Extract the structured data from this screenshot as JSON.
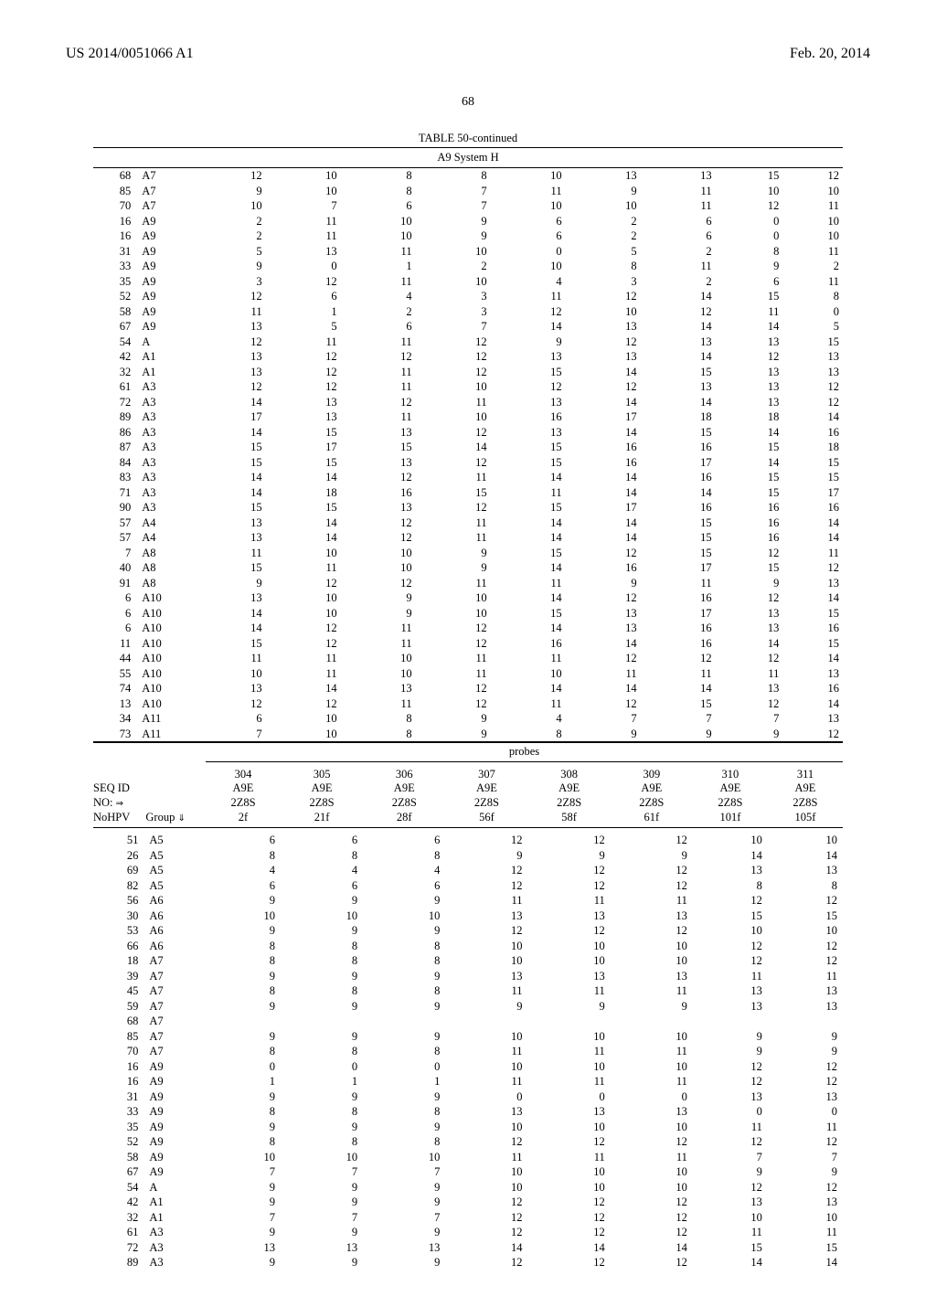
{
  "header": {
    "left": "US 2014/0051066 A1",
    "right": "Feb. 20, 2014"
  },
  "page_number": "68",
  "table_caption": "TABLE 50-continued",
  "system_label": "A9 System H",
  "probes_label": "probes",
  "top_table": {
    "col_count": 11,
    "rows": [
      [
        "68",
        "A7",
        "12",
        "10",
        "8",
        "8",
        "10",
        "13",
        "13",
        "15",
        "12"
      ],
      [
        "85",
        "A7",
        "9",
        "10",
        "8",
        "7",
        "11",
        "9",
        "11",
        "10",
        "10"
      ],
      [
        "70",
        "A7",
        "10",
        "7",
        "6",
        "7",
        "10",
        "10",
        "11",
        "12",
        "11"
      ],
      [
        "16",
        "A9",
        "2",
        "11",
        "10",
        "9",
        "6",
        "2",
        "6",
        "0",
        "10"
      ],
      [
        "16",
        "A9",
        "2",
        "11",
        "10",
        "9",
        "6",
        "2",
        "6",
        "0",
        "10"
      ],
      [
        "31",
        "A9",
        "5",
        "13",
        "11",
        "10",
        "0",
        "5",
        "2",
        "8",
        "11"
      ],
      [
        "33",
        "A9",
        "9",
        "0",
        "1",
        "2",
        "10",
        "8",
        "11",
        "9",
        "2"
      ],
      [
        "35",
        "A9",
        "3",
        "12",
        "11",
        "10",
        "4",
        "3",
        "2",
        "6",
        "11"
      ],
      [
        "52",
        "A9",
        "12",
        "6",
        "4",
        "3",
        "11",
        "12",
        "14",
        "15",
        "8"
      ],
      [
        "58",
        "A9",
        "11",
        "1",
        "2",
        "3",
        "12",
        "10",
        "12",
        "11",
        "0"
      ],
      [
        "67",
        "A9",
        "13",
        "5",
        "6",
        "7",
        "14",
        "13",
        "14",
        "14",
        "5"
      ],
      [
        "54",
        "A",
        "12",
        "11",
        "11",
        "12",
        "9",
        "12",
        "13",
        "13",
        "15"
      ],
      [
        "42",
        "A1",
        "13",
        "12",
        "12",
        "12",
        "13",
        "13",
        "14",
        "12",
        "13"
      ],
      [
        "32",
        "A1",
        "13",
        "12",
        "11",
        "12",
        "15",
        "14",
        "15",
        "13",
        "13"
      ],
      [
        "61",
        "A3",
        "12",
        "12",
        "11",
        "10",
        "12",
        "12",
        "13",
        "13",
        "12"
      ],
      [
        "72",
        "A3",
        "14",
        "13",
        "12",
        "11",
        "13",
        "14",
        "14",
        "13",
        "12"
      ],
      [
        "89",
        "A3",
        "17",
        "13",
        "11",
        "10",
        "16",
        "17",
        "18",
        "18",
        "14"
      ],
      [
        "86",
        "A3",
        "14",
        "15",
        "13",
        "12",
        "13",
        "14",
        "15",
        "14",
        "16"
      ],
      [
        "87",
        "A3",
        "15",
        "17",
        "15",
        "14",
        "15",
        "16",
        "16",
        "15",
        "18"
      ],
      [
        "84",
        "A3",
        "15",
        "15",
        "13",
        "12",
        "15",
        "16",
        "17",
        "14",
        "15"
      ],
      [
        "83",
        "A3",
        "14",
        "14",
        "12",
        "11",
        "14",
        "14",
        "16",
        "15",
        "15"
      ],
      [
        "71",
        "A3",
        "14",
        "18",
        "16",
        "15",
        "11",
        "14",
        "14",
        "15",
        "17"
      ],
      [
        "90",
        "A3",
        "15",
        "15",
        "13",
        "12",
        "15",
        "17",
        "16",
        "16",
        "16"
      ],
      [
        "57",
        "A4",
        "13",
        "14",
        "12",
        "11",
        "14",
        "14",
        "15",
        "16",
        "14"
      ],
      [
        "57",
        "A4",
        "13",
        "14",
        "12",
        "11",
        "14",
        "14",
        "15",
        "16",
        "14"
      ],
      [
        "7",
        "A8",
        "11",
        "10",
        "10",
        "9",
        "15",
        "12",
        "15",
        "12",
        "11"
      ],
      [
        "40",
        "A8",
        "15",
        "11",
        "10",
        "9",
        "14",
        "16",
        "17",
        "15",
        "12"
      ],
      [
        "91",
        "A8",
        "9",
        "12",
        "12",
        "11",
        "11",
        "9",
        "11",
        "9",
        "13"
      ],
      [
        "6",
        "A10",
        "13",
        "10",
        "9",
        "10",
        "14",
        "12",
        "16",
        "12",
        "14"
      ],
      [
        "6",
        "A10",
        "14",
        "10",
        "9",
        "10",
        "15",
        "13",
        "17",
        "13",
        "15"
      ],
      [
        "6",
        "A10",
        "14",
        "12",
        "11",
        "12",
        "14",
        "13",
        "16",
        "13",
        "16"
      ],
      [
        "11",
        "A10",
        "15",
        "12",
        "11",
        "12",
        "16",
        "14",
        "16",
        "14",
        "15"
      ],
      [
        "44",
        "A10",
        "11",
        "11",
        "10",
        "11",
        "11",
        "12",
        "12",
        "12",
        "14"
      ],
      [
        "55",
        "A10",
        "10",
        "11",
        "10",
        "11",
        "10",
        "11",
        "11",
        "11",
        "13"
      ],
      [
        "74",
        "A10",
        "13",
        "14",
        "13",
        "12",
        "14",
        "14",
        "14",
        "13",
        "16"
      ],
      [
        "13",
        "A10",
        "12",
        "12",
        "11",
        "12",
        "11",
        "12",
        "15",
        "12",
        "14"
      ],
      [
        "34",
        "A11",
        "6",
        "10",
        "8",
        "9",
        "4",
        "7",
        "7",
        "7",
        "13"
      ],
      [
        "73",
        "A11",
        "7",
        "10",
        "8",
        "9",
        "8",
        "9",
        "9",
        "9",
        "12"
      ]
    ]
  },
  "bottom_table": {
    "row_headers": {
      "l1": "",
      "l2": "SEQ ID",
      "l3a": "NO: ",
      "l3b": "⇒",
      "l4a": "NoHPV",
      "l4b": "Group ",
      "l4c": "⇓"
    },
    "col_headers": [
      {
        "n": "304",
        "a": "A9E",
        "b": "2Z8S",
        "c": "2f"
      },
      {
        "n": "305",
        "a": "A9E",
        "b": "2Z8S",
        "c": "21f"
      },
      {
        "n": "306",
        "a": "A9E",
        "b": "2Z8S",
        "c": "28f"
      },
      {
        "n": "307",
        "a": "A9E",
        "b": "2Z8S",
        "c": "56f"
      },
      {
        "n": "308",
        "a": "A9E",
        "b": "2Z8S",
        "c": "58f"
      },
      {
        "n": "309",
        "a": "A9E",
        "b": "2Z8S",
        "c": "61f"
      },
      {
        "n": "310",
        "a": "A9E",
        "b": "2Z8S",
        "c": "101f"
      },
      {
        "n": "311",
        "a": "A9E",
        "b": "2Z8S",
        "c": "105f"
      }
    ],
    "rows": [
      [
        "51",
        "A5",
        "6",
        "6",
        "6",
        "12",
        "12",
        "12",
        "10",
        "10"
      ],
      [
        "26",
        "A5",
        "8",
        "8",
        "8",
        "9",
        "9",
        "9",
        "14",
        "14"
      ],
      [
        "69",
        "A5",
        "4",
        "4",
        "4",
        "12",
        "12",
        "12",
        "13",
        "13"
      ],
      [
        "82",
        "A5",
        "6",
        "6",
        "6",
        "12",
        "12",
        "12",
        "8",
        "8"
      ],
      [
        "56",
        "A6",
        "9",
        "9",
        "9",
        "11",
        "11",
        "11",
        "12",
        "12"
      ],
      [
        "30",
        "A6",
        "10",
        "10",
        "10",
        "13",
        "13",
        "13",
        "15",
        "15"
      ],
      [
        "53",
        "A6",
        "9",
        "9",
        "9",
        "12",
        "12",
        "12",
        "10",
        "10"
      ],
      [
        "66",
        "A6",
        "8",
        "8",
        "8",
        "10",
        "10",
        "10",
        "12",
        "12"
      ],
      [
        "18",
        "A7",
        "8",
        "8",
        "8",
        "10",
        "10",
        "10",
        "12",
        "12"
      ],
      [
        "39",
        "A7",
        "9",
        "9",
        "9",
        "13",
        "13",
        "13",
        "11",
        "11"
      ],
      [
        "45",
        "A7",
        "8",
        "8",
        "8",
        "11",
        "11",
        "11",
        "13",
        "13"
      ],
      [
        "59",
        "A7",
        "9",
        "9",
        "9",
        "9",
        "9",
        "9",
        "13",
        "13"
      ],
      [
        "68",
        "A7",
        "",
        "",
        "",
        "",
        "",
        "",
        "",
        ""
      ],
      [
        "85",
        "A7",
        "9",
        "9",
        "9",
        "10",
        "10",
        "10",
        "9",
        "9"
      ],
      [
        "70",
        "A7",
        "8",
        "8",
        "8",
        "11",
        "11",
        "11",
        "9",
        "9"
      ],
      [
        "16",
        "A9",
        "0",
        "0",
        "0",
        "10",
        "10",
        "10",
        "12",
        "12"
      ],
      [
        "16",
        "A9",
        "1",
        "1",
        "1",
        "11",
        "11",
        "11",
        "12",
        "12"
      ],
      [
        "31",
        "A9",
        "9",
        "9",
        "9",
        "0",
        "0",
        "0",
        "13",
        "13"
      ],
      [
        "33",
        "A9",
        "8",
        "8",
        "8",
        "13",
        "13",
        "13",
        "0",
        "0"
      ],
      [
        "35",
        "A9",
        "9",
        "9",
        "9",
        "10",
        "10",
        "10",
        "11",
        "11"
      ],
      [
        "52",
        "A9",
        "8",
        "8",
        "8",
        "12",
        "12",
        "12",
        "12",
        "12"
      ],
      [
        "58",
        "A9",
        "10",
        "10",
        "10",
        "11",
        "11",
        "11",
        "7",
        "7"
      ],
      [
        "67",
        "A9",
        "7",
        "7",
        "7",
        "10",
        "10",
        "10",
        "9",
        "9"
      ],
      [
        "54",
        "A",
        "9",
        "9",
        "9",
        "10",
        "10",
        "10",
        "12",
        "12"
      ],
      [
        "42",
        "A1",
        "9",
        "9",
        "9",
        "12",
        "12",
        "12",
        "13",
        "13"
      ],
      [
        "32",
        "A1",
        "7",
        "7",
        "7",
        "12",
        "12",
        "12",
        "10",
        "10"
      ],
      [
        "61",
        "A3",
        "9",
        "9",
        "9",
        "12",
        "12",
        "12",
        "11",
        "11"
      ],
      [
        "72",
        "A3",
        "13",
        "13",
        "13",
        "14",
        "14",
        "14",
        "15",
        "15"
      ],
      [
        "89",
        "A3",
        "9",
        "9",
        "9",
        "12",
        "12",
        "12",
        "14",
        "14"
      ]
    ]
  }
}
